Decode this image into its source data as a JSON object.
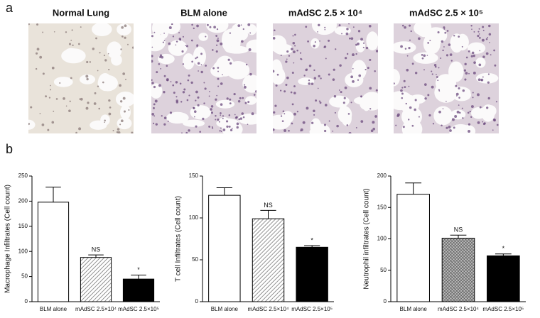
{
  "panel_a_label": "a",
  "panel_b_label": "b",
  "images": [
    {
      "title": "Normal Lung"
    },
    {
      "title": "BLM alone"
    },
    {
      "title": "mAdSC 2.5 × 10⁴"
    },
    {
      "title": "mAdSC 2.5 × 10⁵"
    }
  ],
  "chart_data": [
    {
      "type": "bar",
      "y_label": "Macrophage Infiltrates (Cell count)",
      "categories": [
        "BLM alone",
        "mAdSC 2.5×10⁴",
        "mAdSC 2.5×10⁵"
      ],
      "values": [
        198,
        88,
        45
      ],
      "errors": [
        30,
        5,
        8
      ],
      "value_annotations": [
        null,
        "NS",
        "*"
      ],
      "bar_styles": [
        "white",
        "hatch",
        "black"
      ],
      "ylim": [
        0,
        250
      ],
      "yticks": [
        0,
        50,
        100,
        150,
        200,
        250
      ]
    },
    {
      "type": "bar",
      "y_label": "T cell Infiltrates (Cell count)",
      "categories": [
        "BLM alone",
        "mAdSC 2.5×10⁴",
        "mAdSC 2.5×10⁵"
      ],
      "values": [
        127,
        99,
        65
      ],
      "errors": [
        9,
        10,
        2
      ],
      "value_annotations": [
        null,
        "NS",
        "*"
      ],
      "bar_styles": [
        "white",
        "hatch",
        "black"
      ],
      "ylim": [
        0,
        150
      ],
      "yticks": [
        0,
        50,
        100,
        150
      ]
    },
    {
      "type": "bar",
      "y_label": "Neutrophil infiltrates (Cell count)",
      "categories": [
        "BLM alone",
        "mAdSC 2.5×10⁴",
        "mAdSC 2.5×10⁵"
      ],
      "values": [
        171,
        101,
        73
      ],
      "errors": [
        18,
        5,
        3
      ],
      "value_annotations": [
        null,
        "NS",
        "*"
      ],
      "bar_styles": [
        "white",
        "crosshatch",
        "black"
      ],
      "ylim": [
        0,
        200
      ],
      "yticks": [
        0,
        50,
        100,
        150,
        200
      ]
    }
  ]
}
